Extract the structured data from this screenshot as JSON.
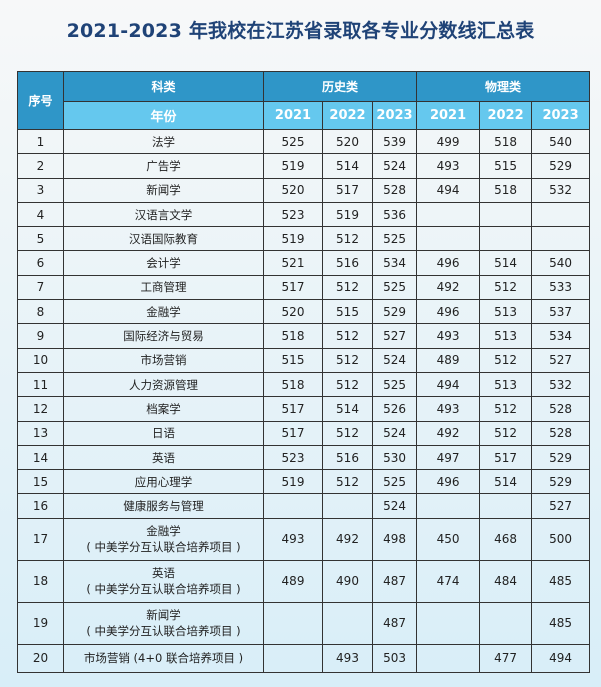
{
  "title": "2021-2023 年我校在江苏省录取各专业分数线汇总表",
  "header": {
    "seq_label": "序号",
    "category_label": "科类",
    "year_label": "年份",
    "groups": [
      {
        "label": "历史类",
        "years": [
          "2021",
          "2022",
          "2023"
        ]
      },
      {
        "label": "物理类",
        "years": [
          "2021",
          "2022",
          "2023"
        ]
      }
    ]
  },
  "rows": [
    {
      "seq": "1",
      "major": "法学",
      "sub": "",
      "history": [
        "525",
        "520",
        "539"
      ],
      "physics": [
        "499",
        "518",
        "540"
      ]
    },
    {
      "seq": "2",
      "major": "广告学",
      "sub": "",
      "history": [
        "519",
        "514",
        "524"
      ],
      "physics": [
        "493",
        "515",
        "529"
      ]
    },
    {
      "seq": "3",
      "major": "新闻学",
      "sub": "",
      "history": [
        "520",
        "517",
        "528"
      ],
      "physics": [
        "494",
        "518",
        "532"
      ]
    },
    {
      "seq": "4",
      "major": "汉语言文学",
      "sub": "",
      "history": [
        "523",
        "519",
        "536"
      ],
      "physics": [
        "",
        "",
        ""
      ]
    },
    {
      "seq": "5",
      "major": "汉语国际教育",
      "sub": "",
      "history": [
        "519",
        "512",
        "525"
      ],
      "physics": [
        "",
        "",
        ""
      ]
    },
    {
      "seq": "6",
      "major": "会计学",
      "sub": "",
      "history": [
        "521",
        "516",
        "534"
      ],
      "physics": [
        "496",
        "514",
        "540"
      ]
    },
    {
      "seq": "7",
      "major": "工商管理",
      "sub": "",
      "history": [
        "517",
        "512",
        "525"
      ],
      "physics": [
        "492",
        "512",
        "533"
      ]
    },
    {
      "seq": "8",
      "major": "金融学",
      "sub": "",
      "history": [
        "520",
        "515",
        "529"
      ],
      "physics": [
        "496",
        "513",
        "537"
      ]
    },
    {
      "seq": "9",
      "major": "国际经济与贸易",
      "sub": "",
      "history": [
        "518",
        "512",
        "527"
      ],
      "physics": [
        "493",
        "513",
        "534"
      ]
    },
    {
      "seq": "10",
      "major": "市场营销",
      "sub": "",
      "history": [
        "515",
        "512",
        "524"
      ],
      "physics": [
        "489",
        "512",
        "527"
      ]
    },
    {
      "seq": "11",
      "major": "人力资源管理",
      "sub": "",
      "history": [
        "518",
        "512",
        "525"
      ],
      "physics": [
        "494",
        "513",
        "532"
      ]
    },
    {
      "seq": "12",
      "major": "档案学",
      "sub": "",
      "history": [
        "517",
        "514",
        "526"
      ],
      "physics": [
        "493",
        "512",
        "528"
      ]
    },
    {
      "seq": "13",
      "major": "日语",
      "sub": "",
      "history": [
        "517",
        "512",
        "524"
      ],
      "physics": [
        "492",
        "512",
        "528"
      ]
    },
    {
      "seq": "14",
      "major": "英语",
      "sub": "",
      "history": [
        "523",
        "516",
        "530"
      ],
      "physics": [
        "497",
        "517",
        "529"
      ]
    },
    {
      "seq": "15",
      "major": "应用心理学",
      "sub": "",
      "history": [
        "519",
        "512",
        "525"
      ],
      "physics": [
        "496",
        "514",
        "529"
      ]
    },
    {
      "seq": "16",
      "major": "健康服务与管理",
      "sub": "",
      "history": [
        "",
        "",
        "524"
      ],
      "physics": [
        "",
        "",
        "527"
      ]
    },
    {
      "seq": "17",
      "major": "金融学",
      "sub": "( 中美学分互认联合培养项目 )",
      "history": [
        "493",
        "492",
        "498"
      ],
      "physics": [
        "450",
        "468",
        "500"
      ]
    },
    {
      "seq": "18",
      "major": "英语",
      "sub": "( 中美学分互认联合培养项目 )",
      "history": [
        "489",
        "490",
        "487"
      ],
      "physics": [
        "474",
        "484",
        "485"
      ]
    },
    {
      "seq": "19",
      "major": "新闻学",
      "sub": "( 中美学分互认联合培养项目 )",
      "history": [
        "",
        "",
        "487"
      ],
      "physics": [
        "",
        "",
        "485"
      ]
    },
    {
      "seq": "20",
      "major": "市场营销 (4+0 联合培养项目 )",
      "sub": "",
      "history": [
        "",
        "493",
        "503"
      ],
      "physics": [
        "",
        "477",
        "494"
      ]
    }
  ],
  "colors": {
    "title": "#1f4377",
    "header_dark": "#2f96c8",
    "header_light": "#65c8ee"
  }
}
